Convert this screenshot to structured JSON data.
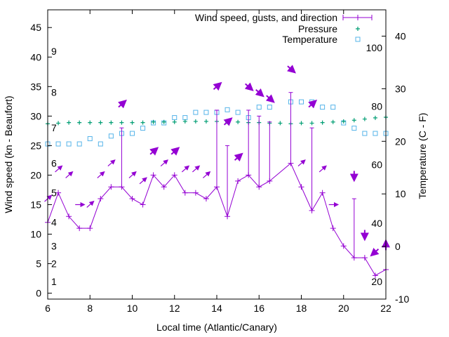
{
  "chart_data": {
    "type": "line",
    "xlabel": "Local time (Atlantic/Canary)",
    "ylabel": "Wind speed (kn - Beaufort)",
    "y2label": "Temperature (C - F)",
    "xlim": [
      6,
      22
    ],
    "ylim": [
      -1,
      48
    ],
    "y2lim": [
      -10,
      45
    ],
    "x_ticks": [
      6,
      8,
      10,
      12,
      14,
      16,
      18,
      20,
      22
    ],
    "y_ticks": [
      0,
      5,
      10,
      15,
      20,
      25,
      30,
      35,
      40,
      45
    ],
    "y2_ticks": [
      -10,
      0,
      10,
      20,
      30,
      40
    ],
    "fahrenheit_labels": [
      {
        "value": 20,
        "celsius": -6.67
      },
      {
        "value": 40,
        "celsius": 4.44
      },
      {
        "value": 60,
        "celsius": 15.56
      },
      {
        "value": 80,
        "celsius": 26.67
      },
      {
        "value": 100,
        "celsius": 37.78
      }
    ],
    "beaufort_labels": [
      {
        "value": 1,
        "kn": 2
      },
      {
        "value": 2,
        "kn": 5
      },
      {
        "value": 3,
        "kn": 8
      },
      {
        "value": 4,
        "kn": 12
      },
      {
        "value": 5,
        "kn": 17
      },
      {
        "value": 6,
        "kn": 22
      },
      {
        "value": 7,
        "kn": 28
      },
      {
        "value": 8,
        "kn": 34
      },
      {
        "value": 9,
        "kn": 41
      }
    ],
    "legend_position": "top-right",
    "series": [
      {
        "name": "Wind speed, gusts, and direction",
        "color": "#9400d3",
        "x": [
          6,
          6.5,
          7,
          7.5,
          8,
          8.5,
          9,
          9.5,
          10,
          10.5,
          11,
          11.5,
          12,
          12.5,
          13,
          13.5,
          14,
          14.5,
          15,
          15.5,
          16,
          16.5,
          17.5,
          18,
          18.5,
          19,
          19.5,
          20,
          20.5,
          21,
          21.5,
          22
        ],
        "speed": [
          12,
          17,
          13,
          11,
          11,
          16,
          18,
          18,
          16,
          15,
          20,
          18,
          20,
          17,
          17,
          16,
          18,
          13,
          19,
          20,
          18,
          19,
          22,
          18,
          14,
          17,
          11,
          8,
          6,
          6,
          3,
          4
        ],
        "gust": [
          12,
          17,
          13,
          11,
          11,
          16,
          18,
          28,
          16,
          15,
          20,
          18,
          20,
          17,
          17,
          16,
          31,
          25,
          19,
          31,
          30,
          29,
          34,
          18,
          28,
          17,
          11,
          8,
          16,
          6,
          3,
          4
        ],
        "arrows": [
          {
            "x": 6,
            "y": 16,
            "dir": "ne",
            "hi": false
          },
          {
            "x": 6.5,
            "y": 21,
            "dir": "ne",
            "hi": false
          },
          {
            "x": 7,
            "y": 20,
            "dir": "ne",
            "hi": false
          },
          {
            "x": 7.5,
            "y": 15,
            "dir": "e",
            "hi": false
          },
          {
            "x": 8,
            "y": 15,
            "dir": "ne",
            "hi": false
          },
          {
            "x": 8.5,
            "y": 20,
            "dir": "ne",
            "hi": false
          },
          {
            "x": 9,
            "y": 22,
            "dir": "ne",
            "hi": false
          },
          {
            "x": 9.5,
            "y": 32,
            "dir": "ne",
            "hi": true
          },
          {
            "x": 10,
            "y": 20,
            "dir": "ne",
            "hi": false
          },
          {
            "x": 10.5,
            "y": 19,
            "dir": "ne",
            "hi": false
          },
          {
            "x": 11,
            "y": 24,
            "dir": "ne",
            "hi": true
          },
          {
            "x": 11.5,
            "y": 22,
            "dir": "ne",
            "hi": false
          },
          {
            "x": 12,
            "y": 24,
            "dir": "ne",
            "hi": true
          },
          {
            "x": 12.5,
            "y": 21,
            "dir": "ne",
            "hi": false
          },
          {
            "x": 13,
            "y": 21,
            "dir": "ne",
            "hi": false
          },
          {
            "x": 13.5,
            "y": 20,
            "dir": "ne",
            "hi": false
          },
          {
            "x": 14,
            "y": 35,
            "dir": "ne",
            "hi": true
          },
          {
            "x": 14.5,
            "y": 29,
            "dir": "ne",
            "hi": true
          },
          {
            "x": 15,
            "y": 23,
            "dir": "ne",
            "hi": true
          },
          {
            "x": 15.5,
            "y": 35,
            "dir": "se",
            "hi": true
          },
          {
            "x": 16,
            "y": 34,
            "dir": "se",
            "hi": true
          },
          {
            "x": 16.5,
            "y": 33,
            "dir": "se",
            "hi": true
          },
          {
            "x": 17.5,
            "y": 38,
            "dir": "se",
            "hi": true
          },
          {
            "x": 18,
            "y": 22,
            "dir": "ne",
            "hi": false
          },
          {
            "x": 18.5,
            "y": 32,
            "dir": "ne",
            "hi": true
          },
          {
            "x": 19,
            "y": 21,
            "dir": "ne",
            "hi": false
          },
          {
            "x": 19.5,
            "y": 15,
            "dir": "e",
            "hi": false
          },
          {
            "x": 20.5,
            "y": 20,
            "dir": "s",
            "hi": true
          },
          {
            "x": 21,
            "y": 10,
            "dir": "s",
            "hi": true
          },
          {
            "x": 21.5,
            "y": 7,
            "dir": "sw",
            "hi": true
          },
          {
            "x": 22,
            "y": 8,
            "dir": "n",
            "hi": true
          }
        ]
      },
      {
        "name": "Pressure",
        "color": "#009e73",
        "x": [
          6,
          6.5,
          7,
          7.5,
          8,
          8.5,
          9,
          9.5,
          10,
          10.5,
          11,
          11.5,
          12,
          12.5,
          13,
          13.5,
          14,
          14.5,
          15,
          15.5,
          16,
          16.5,
          17,
          17.5,
          18,
          18.5,
          19,
          19.5,
          20,
          20.5,
          21,
          21.5,
          22
        ],
        "y": [
          28.7,
          28.8,
          28.9,
          28.9,
          28.9,
          28.9,
          28.9,
          28.9,
          28.9,
          28.9,
          29.0,
          29.0,
          29.0,
          29.1,
          29.1,
          29.1,
          29.1,
          29.0,
          29.0,
          28.9,
          28.9,
          28.8,
          28.8,
          28.7,
          28.8,
          28.8,
          28.9,
          29.0,
          29.1,
          29.3,
          29.5,
          29.7,
          29.8
        ]
      },
      {
        "name": "Temperature",
        "color": "#56b4e9",
        "x": [
          6,
          6.5,
          7,
          7.5,
          8,
          8.5,
          9,
          9.5,
          10,
          10.5,
          11,
          11.5,
          12,
          12.5,
          13,
          13.5,
          14,
          14.5,
          15,
          15.5,
          16,
          16.5,
          17.5,
          18,
          18.5,
          19,
          19.5,
          20,
          20.5,
          21,
          21.5,
          22
        ],
        "y": [
          19.5,
          19.5,
          19.5,
          19.5,
          20.5,
          19.5,
          21,
          21.5,
          21.5,
          22.5,
          23.5,
          23.5,
          24.5,
          24.5,
          25.5,
          25.5,
          25.5,
          26,
          25.5,
          24.5,
          26.5,
          26.5,
          27.5,
          27.5,
          27.5,
          26.5,
          26.5,
          23.5,
          22.5,
          21.5,
          21.5,
          21.5
        ]
      }
    ]
  }
}
